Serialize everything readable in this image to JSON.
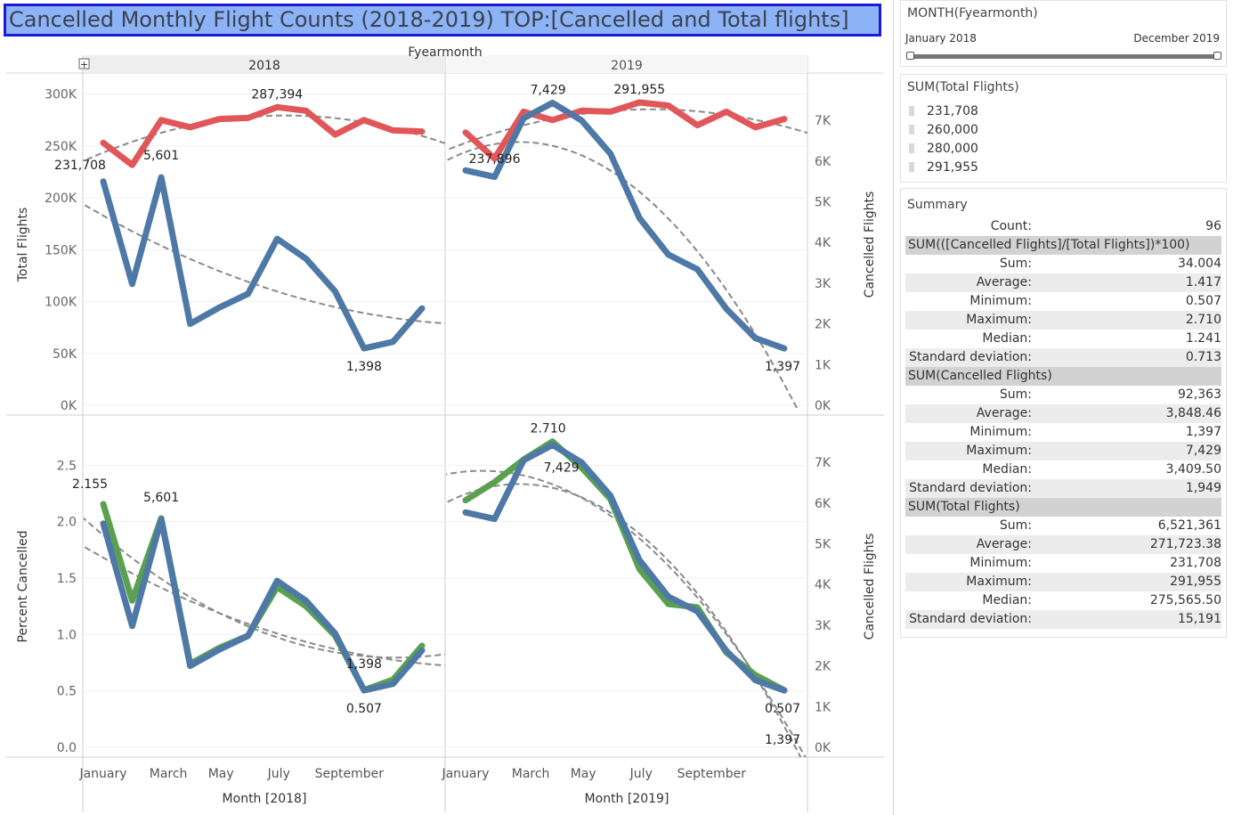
{
  "title": "Cancelled Monthly Flight Counts (2018-2019) TOP:[Cancelled and Total flights]",
  "column_header": "Fyearmonth",
  "years": [
    "2018",
    "2019"
  ],
  "xlabels": [
    "Month [2018]",
    "Month [2019]"
  ],
  "colors": {
    "total": "#e15759",
    "cancelled": "#4e79a7",
    "percent": "#59a14f",
    "trend": "#8a8a8a",
    "title_bg": "#8cb3f5",
    "title_border": "#1a1ad6"
  },
  "filter": {
    "title": "MONTH(Fyearmonth)",
    "start": "January 2018",
    "end": "December 2019"
  },
  "legend": {
    "title": "SUM(Total Flights)",
    "items": [
      "231,708",
      "260,000",
      "280,000",
      "291,955"
    ]
  },
  "summary": {
    "title": "Summary",
    "rows": [
      {
        "type": "row",
        "label": "Count:",
        "value": "96"
      },
      {
        "type": "head",
        "label": "SUM(([Cancelled Flights]/[Total Flights])*100)"
      },
      {
        "type": "row",
        "label": "Sum:",
        "value": "34.004"
      },
      {
        "type": "row",
        "label": "Average:",
        "value": "1.417"
      },
      {
        "type": "row",
        "label": "Minimum:",
        "value": "0.507"
      },
      {
        "type": "row",
        "label": "Maximum:",
        "value": "2.710"
      },
      {
        "type": "row",
        "label": "Median:",
        "value": "1.241"
      },
      {
        "type": "row",
        "label": "Standard deviation:",
        "value": "0.713"
      },
      {
        "type": "head",
        "label": "SUM(Cancelled Flights)"
      },
      {
        "type": "row",
        "label": "Sum:",
        "value": "92,363"
      },
      {
        "type": "row",
        "label": "Average:",
        "value": "3,848.46"
      },
      {
        "type": "row",
        "label": "Minimum:",
        "value": "1,397"
      },
      {
        "type": "row",
        "label": "Maximum:",
        "value": "7,429"
      },
      {
        "type": "row",
        "label": "Median:",
        "value": "3,409.50"
      },
      {
        "type": "row",
        "label": "Standard deviation:",
        "value": "1,949"
      },
      {
        "type": "head",
        "label": "SUM(Total Flights)"
      },
      {
        "type": "row",
        "label": "Sum:",
        "value": "6,521,361"
      },
      {
        "type": "row",
        "label": "Average:",
        "value": "271,723.38"
      },
      {
        "type": "row",
        "label": "Minimum:",
        "value": "231,708"
      },
      {
        "type": "row",
        "label": "Maximum:",
        "value": "291,955"
      },
      {
        "type": "row",
        "label": "Median:",
        "value": "275,565.50"
      },
      {
        "type": "row",
        "label": "Standard deviation:",
        "value": "15,191"
      }
    ]
  },
  "chart_data": [
    {
      "type": "line",
      "title": "",
      "ylabel_left": "Total Flights",
      "ylabel_right": "Cancelled Flights",
      "y_left_ticks": [
        "0K",
        "50K",
        "100K",
        "150K",
        "200K",
        "250K",
        "300K"
      ],
      "y_right_ticks": [
        "0K",
        "1K",
        "2K",
        "3K",
        "4K",
        "5K",
        "6K",
        "7K"
      ],
      "ylim_left": [
        0,
        310000
      ],
      "ylim_right": [
        0,
        7900
      ],
      "x_tick_labels": [
        "January",
        "March",
        "May",
        "July",
        "September"
      ],
      "series": {
        "2018": {
          "total": [
            253000,
            231708,
            275000,
            268000,
            276000,
            277000,
            287394,
            284000,
            261000,
            275000,
            265000,
            264000
          ],
          "cancelled": [
            5500,
            2980,
            5601,
            2000,
            2400,
            2740,
            4090,
            3600,
            2800,
            1398,
            1560,
            2380
          ]
        },
        "2019": {
          "total": [
            263000,
            237896,
            283000,
            275000,
            284000,
            283000,
            291955,
            289000,
            270000,
            283000,
            268000,
            276000
          ],
          "cancelled": [
            5770,
            5610,
            7050,
            7429,
            7000,
            6180,
            4600,
            3700,
            3340,
            2370,
            1650,
            1397
          ]
        }
      },
      "labels": {
        "2018": [
          "231,708",
          "5,601",
          "287,394",
          "1,398"
        ],
        "2019": [
          "237,896",
          "7,429",
          "291,955",
          "1,397"
        ]
      }
    },
    {
      "type": "line",
      "title": "",
      "ylabel_left": "Percent Cancelled",
      "ylabel_right": "Cancelled Flights",
      "y_left_ticks": [
        "0.0",
        "0.5",
        "1.0",
        "1.5",
        "2.0",
        "2.5"
      ],
      "y_right_ticks": [
        "0K",
        "1K",
        "2K",
        "3K",
        "4K",
        "5K",
        "6K",
        "7K"
      ],
      "ylim_left": [
        0,
        2.85
      ],
      "ylim_right": [
        0,
        7900
      ],
      "x_tick_labels": [
        "January",
        "March",
        "May",
        "July",
        "September"
      ],
      "series": {
        "2018": {
          "percent": [
            2.155,
            1.3,
            2.03,
            0.74,
            0.88,
            0.99,
            1.42,
            1.25,
            0.99,
            0.507,
            0.6,
            0.9
          ],
          "cancelled": [
            5500,
            2980,
            5601,
            2000,
            2400,
            2740,
            4090,
            3600,
            2800,
            1398,
            1560,
            2380
          ]
        },
        "2019": {
          "percent": [
            2.19,
            2.35,
            2.55,
            2.71,
            2.48,
            2.2,
            1.58,
            1.27,
            1.24,
            0.84,
            0.64,
            0.507
          ],
          "cancelled": [
            5770,
            5610,
            7050,
            7429,
            7000,
            6180,
            4600,
            3700,
            3340,
            2370,
            1650,
            1397
          ]
        }
      },
      "labels": {
        "2018": [
          "2.155",
          "5,601",
          "1,398",
          "0.507"
        ],
        "2019": [
          "2.710",
          "7,429",
          "0.507",
          "1,397"
        ]
      }
    }
  ]
}
